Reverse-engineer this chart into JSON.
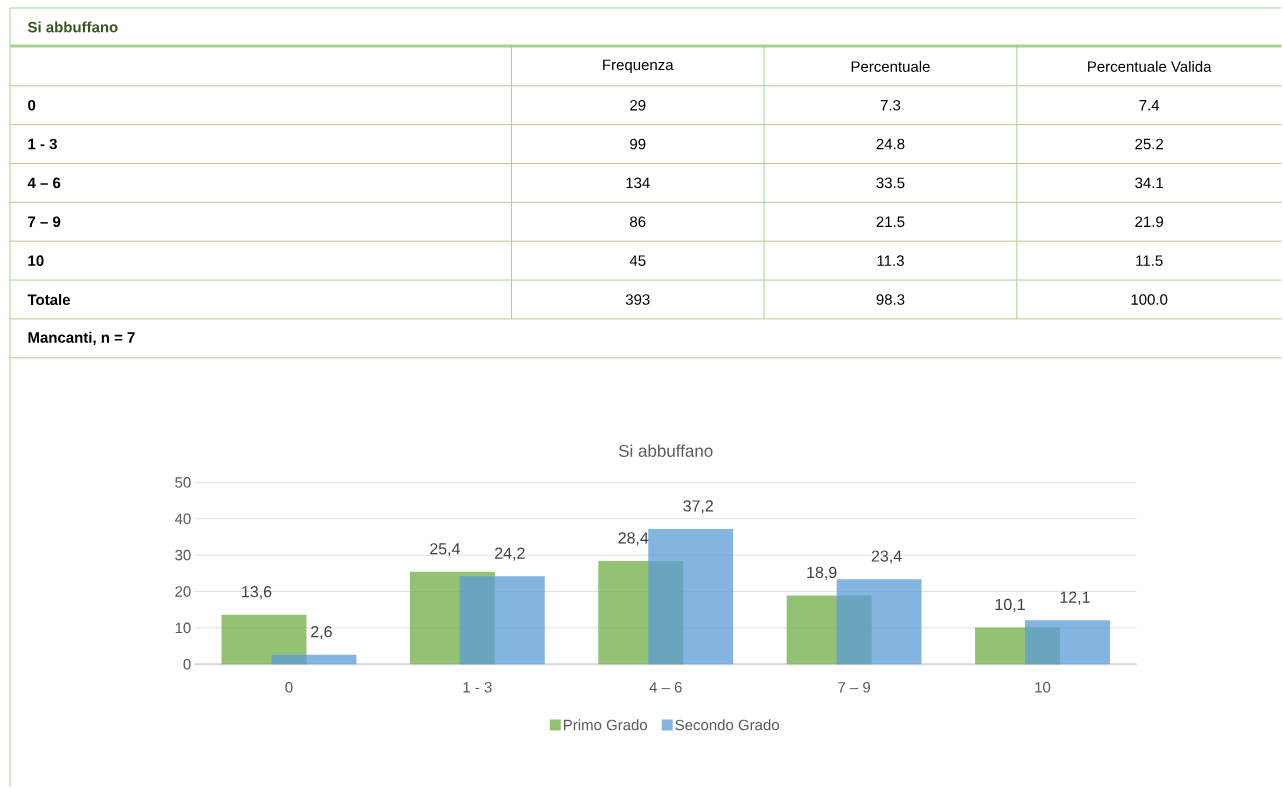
{
  "chart_data": [
    {
      "type": "other",
      "title": "Si abbuffano",
      "categories": [
        "Frequenza",
        "Percentuale",
        "Percentuale Valida"
      ],
      "y_categories": [
        "0",
        "1 - 3",
        "4 – 6",
        "7 – 9",
        "10",
        "Totale"
      ],
      "cell_labels": [
        [
          "29",
          "7.3",
          "7.4"
        ],
        [
          "99",
          "24.8",
          "25.2"
        ],
        [
          "134",
          "33.5",
          "34.1"
        ],
        [
          "86",
          "21.5",
          "21.9"
        ],
        [
          "45",
          "11.3",
          "11.5"
        ],
        [
          "393",
          "98.3",
          "100.0"
        ]
      ],
      "annotations": [
        "Mancanti, n = 7"
      ]
    },
    {
      "type": "bar",
      "title": "Si abbuffano",
      "categories": [
        "0",
        "1 - 3",
        "4 – 6",
        "7 – 9",
        "10"
      ],
      "series": [
        {
          "name": "Primo Grado",
          "color": "#70ad47",
          "values": [
            13.6,
            25.4,
            28.4,
            18.9,
            10.1
          ],
          "value_labels": [
            "13,6",
            "25,4",
            "28,4",
            "18,9",
            "10,1"
          ]
        },
        {
          "name": "Secondo Grado",
          "color": "#5b9bd5",
          "values": [
            2.6,
            24.2,
            37.2,
            23.4,
            12.1
          ],
          "value_labels": [
            "2,6",
            "24,2",
            "37,2",
            "23,4",
            "12,1"
          ]
        }
      ],
      "ylim": [
        0,
        50
      ],
      "yticks": [
        0,
        10,
        20,
        30,
        40,
        50
      ],
      "grid": "y",
      "legend": "bottom"
    }
  ]
}
